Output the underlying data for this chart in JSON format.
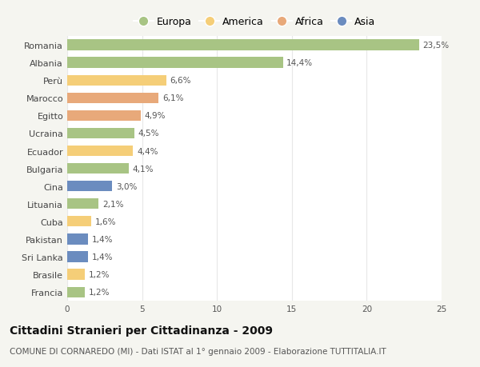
{
  "categories": [
    "Romania",
    "Albania",
    "Perù",
    "Marocco",
    "Egitto",
    "Ucraina",
    "Ecuador",
    "Bulgaria",
    "Cina",
    "Lituania",
    "Cuba",
    "Pakistan",
    "Sri Lanka",
    "Brasile",
    "Francia"
  ],
  "values": [
    23.5,
    14.4,
    6.6,
    6.1,
    4.9,
    4.5,
    4.4,
    4.1,
    3.0,
    2.1,
    1.6,
    1.4,
    1.4,
    1.2,
    1.2
  ],
  "labels": [
    "23,5%",
    "14,4%",
    "6,6%",
    "6,1%",
    "4,9%",
    "4,5%",
    "4,4%",
    "4,1%",
    "3,0%",
    "2,1%",
    "1,6%",
    "1,4%",
    "1,4%",
    "1,2%",
    "1,2%"
  ],
  "continents": [
    "Europa",
    "Europa",
    "America",
    "Africa",
    "Africa",
    "Europa",
    "America",
    "Europa",
    "Asia",
    "Europa",
    "America",
    "Asia",
    "Asia",
    "America",
    "Europa"
  ],
  "continent_colors": {
    "Europa": "#a8c484",
    "America": "#f5ce78",
    "Africa": "#e8a97a",
    "Asia": "#6b8cbf"
  },
  "legend_order": [
    "Europa",
    "America",
    "Africa",
    "Asia"
  ],
  "title": "Cittadini Stranieri per Cittadinanza - 2009",
  "subtitle": "COMUNE DI CORNAREDO (MI) - Dati ISTAT al 1° gennaio 2009 - Elaborazione TUTTITALIA.IT",
  "xlim": [
    0,
    25
  ],
  "xticks": [
    0,
    5,
    10,
    15,
    20,
    25
  ],
  "background_color": "#f5f5f0",
  "plot_bg_color": "#ffffff",
  "grid_color": "#e8e8e8",
  "title_fontsize": 10,
  "subtitle_fontsize": 7.5,
  "label_fontsize": 7.5,
  "tick_fontsize": 7.5,
  "ytick_fontsize": 8
}
